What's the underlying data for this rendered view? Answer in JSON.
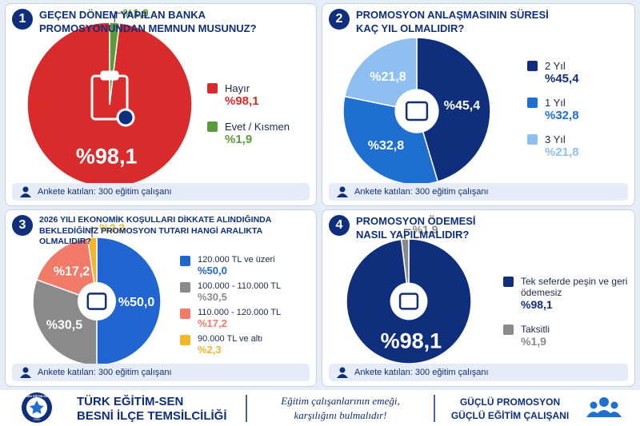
{
  "chart_data": [
    {
      "type": "pie",
      "badge": "1",
      "title": "GEÇEN DÖNEM YAPILAN BANKA PROMOSYONUNDAN MEMNUN MUSUNUZ?",
      "categories": [
        "Hayır",
        "Evet / Kısmen"
      ],
      "values": [
        98.1,
        1.9
      ],
      "value_labels": [
        "%98,1",
        "%1,9"
      ],
      "colors": [
        "#d92b2b",
        "#5b9a3a"
      ],
      "note": "Ankete katılan: 300 eğitim çalışanı"
    },
    {
      "type": "pie",
      "badge": "2",
      "title": "PROMOSYON ANLAŞMASININ SÜRESİ KAÇ YIL OLMALIDIR?",
      "categories": [
        "2 Yıl",
        "1 Yıl",
        "3 Yıl"
      ],
      "values": [
        45.4,
        32.8,
        21.8
      ],
      "value_labels": [
        "%45,4",
        "%32,8",
        "%21,8"
      ],
      "colors": [
        "#0f2f7c",
        "#1f6fd1",
        "#8ebff0"
      ],
      "note": "Ankete katılan: 300 eğitim çalışanı"
    },
    {
      "type": "pie",
      "badge": "3",
      "title": "2026 YILI EKONOMİK KOŞULLARI DİKKATE ALINDIĞINDA BEKLEDİĞİNİZ PROMOSYON TUTARI HANGİ ARALIKTA OLMALIDIR?",
      "categories": [
        "120.000 TL ve üzeri",
        "100.000 - 110.000 TL",
        "110.000 - 120.000 TL",
        "90.000 TL ve altı"
      ],
      "values": [
        50.0,
        30.5,
        17.2,
        2.3
      ],
      "value_labels": [
        "%50,0",
        "%30,5",
        "%17,2",
        "%2,3"
      ],
      "colors": [
        "#2166d0",
        "#8a8a8a",
        "#f17a68",
        "#f3b52c"
      ],
      "note": "Ankete katılan: 300 eğitim çalışanı"
    },
    {
      "type": "pie",
      "badge": "4",
      "title": "PROMOSYON ÖDEMESİ NASIL YAPILMALIDIR?",
      "categories": [
        "Tek seferde peşin ve geri ödemesiz",
        "Taksitli"
      ],
      "values": [
        98.1,
        1.9
      ],
      "value_labels": [
        "%98,1",
        "%1,9"
      ],
      "colors": [
        "#0f2f7c",
        "#8a8a8a"
      ],
      "note": "Ankete katılan: 300 eğitim çalışanı"
    }
  ],
  "footer": {
    "logo_text": "TÜRK EĞİTİM SEN",
    "logo_year": "1992",
    "org": [
      "TÜRK EĞİTİM-SEN",
      "BESNİ İLÇE TEMSİLCİLİĞİ"
    ],
    "slogan": [
      "Eğitim çalışanlarının emeği,",
      "karşılığını bulmalıdır!"
    ],
    "motto": [
      "GÜÇLÜ PROMOSYON",
      "GÜÇLÜ EĞİTİM ÇALIŞANI"
    ]
  }
}
